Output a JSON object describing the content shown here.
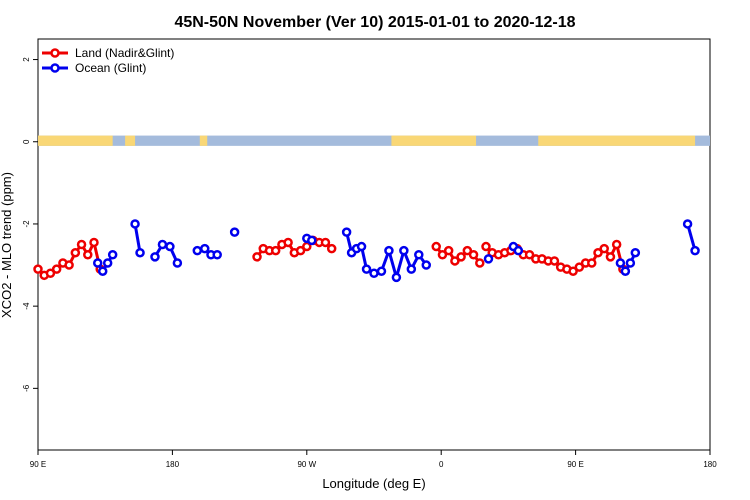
{
  "chart_data": {
    "type": "line",
    "title": "45N-50N November (Ver 10)   2015-01-01 to 2020-12-18",
    "xlabel": "Longitude (deg E)",
    "ylabel": "XCO2 - MLO trend (ppm)",
    "xlim": [
      -90,
      180
    ],
    "ylim": [
      -7.5,
      2.5
    ],
    "x_ticks": [
      {
        "value": -90,
        "label": "90 E"
      },
      {
        "value": -36,
        "label": "180"
      },
      {
        "value": 18,
        "label": "90 W"
      },
      {
        "value": 72,
        "label": "0"
      },
      {
        "value": 126,
        "label": "90 E"
      },
      {
        "value": 180,
        "label": "180"
      }
    ],
    "y_ticks": [
      2,
      0,
      -2,
      -4,
      -6
    ],
    "legend_position": "top-left",
    "land_ocean_band": {
      "y_range": [
        -0.1,
        0.15
      ],
      "land_color": "#f9d776",
      "ocean_color": "#a4bbdc",
      "land_intervals": [
        [
          -90,
          -60
        ],
        [
          -55,
          -51
        ],
        [
          -25,
          -22
        ],
        [
          52,
          86
        ],
        [
          111,
          174
        ]
      ]
    },
    "series": [
      {
        "name": "Land (Nadir&Glint)",
        "color": "#ee0000",
        "segments": [
          [
            [
              -90,
              -3.1
            ],
            [
              -87.5,
              -3.25
            ],
            [
              -85,
              -3.2
            ],
            [
              -82.5,
              -3.1
            ],
            [
              -80,
              -2.95
            ],
            [
              -77.5,
              -3.0
            ],
            [
              -75,
              -2.7
            ],
            [
              -72.5,
              -2.5
            ],
            [
              -70,
              -2.75
            ],
            [
              -67.5,
              -2.45
            ],
            [
              -65,
              -3.1
            ]
          ],
          [
            [
              -2,
              -2.8
            ],
            [
              0.5,
              -2.6
            ],
            [
              3,
              -2.65
            ],
            [
              5.5,
              -2.65
            ],
            [
              8,
              -2.5
            ],
            [
              10.5,
              -2.45
            ],
            [
              13,
              -2.7
            ],
            [
              15.5,
              -2.65
            ],
            [
              18,
              -2.55
            ],
            [
              20.5,
              -2.4
            ],
            [
              23,
              -2.45
            ],
            [
              25.5,
              -2.45
            ],
            [
              28,
              -2.6
            ]
          ],
          [
            [
              70,
              -2.55
            ],
            [
              72.5,
              -2.75
            ],
            [
              75,
              -2.65
            ],
            [
              77.5,
              -2.9
            ],
            [
              80,
              -2.8
            ],
            [
              82.5,
              -2.65
            ],
            [
              85,
              -2.75
            ],
            [
              87.5,
              -2.95
            ]
          ],
          [
            [
              90,
              -2.55
            ],
            [
              92.5,
              -2.7
            ],
            [
              95,
              -2.75
            ],
            [
              97.5,
              -2.7
            ],
            [
              100,
              -2.65
            ],
            [
              102.5,
              -2.6
            ],
            [
              105,
              -2.75
            ],
            [
              107.5,
              -2.75
            ],
            [
              110,
              -2.85
            ],
            [
              112.5,
              -2.85
            ],
            [
              115,
              -2.9
            ],
            [
              117.5,
              -2.9
            ],
            [
              120,
              -3.05
            ],
            [
              122.5,
              -3.1
            ],
            [
              125,
              -3.15
            ],
            [
              127.5,
              -3.05
            ],
            [
              130,
              -2.95
            ],
            [
              132.5,
              -2.95
            ],
            [
              135,
              -2.7
            ],
            [
              137.5,
              -2.6
            ],
            [
              140,
              -2.8
            ],
            [
              142.5,
              -2.5
            ],
            [
              145,
              -3.1
            ]
          ]
        ]
      },
      {
        "name": "Ocean (Glint)",
        "color": "#0000ee",
        "segments": [
          [
            [
              -66,
              -2.95
            ],
            [
              -64,
              -3.15
            ],
            [
              -62,
              -2.95
            ],
            [
              -60,
              -2.75
            ]
          ],
          [
            [
              -51,
              -2.0
            ],
            [
              -49,
              -2.7
            ]
          ],
          [
            [
              -43,
              -2.8
            ],
            [
              -40,
              -2.5
            ],
            [
              -37,
              -2.55
            ],
            [
              -34,
              -2.95
            ]
          ],
          [
            [
              -26,
              -2.65
            ],
            [
              -23,
              -2.6
            ],
            [
              -20.5,
              -2.75
            ],
            [
              -18,
              -2.75
            ]
          ],
          [
            [
              -11,
              -2.2
            ]
          ],
          [
            [
              18,
              -2.35
            ],
            [
              20,
              -2.4
            ]
          ],
          [
            [
              34,
              -2.2
            ],
            [
              36,
              -2.7
            ],
            [
              38,
              -2.6
            ],
            [
              40,
              -2.55
            ],
            [
              42,
              -3.1
            ],
            [
              45,
              -3.2
            ],
            [
              48,
              -3.15
            ],
            [
              51,
              -2.65
            ],
            [
              54,
              -3.3
            ],
            [
              57,
              -2.65
            ],
            [
              60,
              -3.1
            ],
            [
              63,
              -2.75
            ],
            [
              66,
              -3.0
            ]
          ],
          [
            [
              91,
              -2.85
            ]
          ],
          [
            [
              101,
              -2.55
            ],
            [
              103,
              -2.65
            ]
          ],
          [
            [
              144,
              -2.95
            ],
            [
              146,
              -3.15
            ],
            [
              148,
              -2.95
            ],
            [
              150,
              -2.7
            ]
          ],
          [
            [
              171,
              -2.0
            ],
            [
              174,
              -2.65
            ]
          ]
        ]
      }
    ]
  }
}
